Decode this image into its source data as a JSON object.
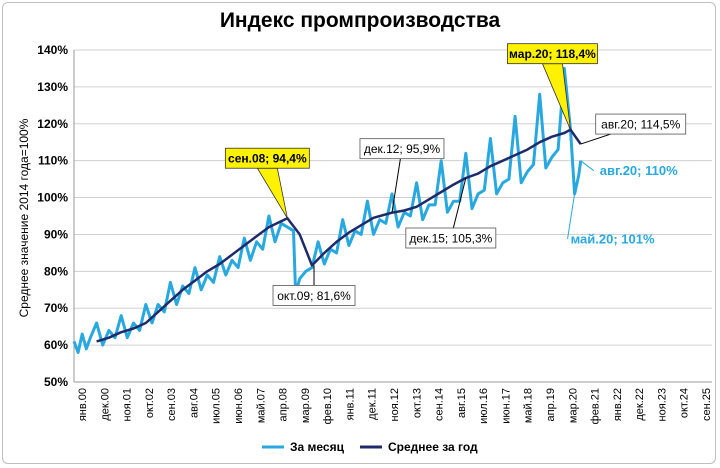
{
  "chart_data": {
    "type": "line",
    "title": "Индекс промпроизводства",
    "ylabel": "Среднее значение 2014 года=100%",
    "xlabel": "",
    "ylim": [
      50,
      140
    ],
    "y_ticks": [
      "50%",
      "60%",
      "70%",
      "80%",
      "90%",
      "100%",
      "110%",
      "120%",
      "130%",
      "140%"
    ],
    "x_range": [
      "2000-01",
      "2025-12"
    ],
    "x_tick_labels": [
      "янв.00",
      "дек.00",
      "ноя.01",
      "окт.02",
      "сен.03",
      "авг.04",
      "июл.05",
      "июн.06",
      "май.07",
      "апр.08",
      "мар.09",
      "фев.10",
      "янв.11",
      "дек.11",
      "ноя.12",
      "окт.13",
      "сен.14",
      "авг.15",
      "июл.16",
      "июн.17",
      "май.18",
      "апр.19",
      "мар.20",
      "фев.21",
      "янв.22",
      "дек.22",
      "ноя.23",
      "окт.24",
      "сен.25"
    ],
    "grid": true,
    "legend_position": "bottom",
    "series": [
      {
        "name": "За месяц",
        "color": "#29a8e0",
        "points": [
          [
            "2000-01",
            61
          ],
          [
            "2000-03",
            58
          ],
          [
            "2000-05",
            63
          ],
          [
            "2000-07",
            59
          ],
          [
            "2000-09",
            62
          ],
          [
            "2000-12",
            66
          ],
          [
            "2001-03",
            60
          ],
          [
            "2001-06",
            64
          ],
          [
            "2001-09",
            62
          ],
          [
            "2001-12",
            68
          ],
          [
            "2002-03",
            62
          ],
          [
            "2002-06",
            66
          ],
          [
            "2002-09",
            64
          ],
          [
            "2002-12",
            71
          ],
          [
            "2003-03",
            66
          ],
          [
            "2003-06",
            71
          ],
          [
            "2003-09",
            69
          ],
          [
            "2003-12",
            77
          ],
          [
            "2004-03",
            71
          ],
          [
            "2004-06",
            76
          ],
          [
            "2004-09",
            74
          ],
          [
            "2004-12",
            81
          ],
          [
            "2005-03",
            75
          ],
          [
            "2005-06",
            79
          ],
          [
            "2005-09",
            77
          ],
          [
            "2005-12",
            84
          ],
          [
            "2006-03",
            79
          ],
          [
            "2006-06",
            83
          ],
          [
            "2006-09",
            81
          ],
          [
            "2006-12",
            89
          ],
          [
            "2007-03",
            83
          ],
          [
            "2007-06",
            88
          ],
          [
            "2007-09",
            86
          ],
          [
            "2007-12",
            95
          ],
          [
            "2008-03",
            88
          ],
          [
            "2008-06",
            93
          ],
          [
            "2008-09",
            92
          ],
          [
            "2008-12",
            91
          ],
          [
            "2009-01",
            74
          ],
          [
            "2009-03",
            78
          ],
          [
            "2009-06",
            80
          ],
          [
            "2009-09",
            81
          ],
          [
            "2009-12",
            88
          ],
          [
            "2010-03",
            82
          ],
          [
            "2010-06",
            86
          ],
          [
            "2010-09",
            85
          ],
          [
            "2010-12",
            94
          ],
          [
            "2011-03",
            87
          ],
          [
            "2011-06",
            91
          ],
          [
            "2011-09",
            90
          ],
          [
            "2011-12",
            99
          ],
          [
            "2012-03",
            90
          ],
          [
            "2012-06",
            94
          ],
          [
            "2012-09",
            93
          ],
          [
            "2012-12",
            101
          ],
          [
            "2013-03",
            92
          ],
          [
            "2013-06",
            96
          ],
          [
            "2013-09",
            95
          ],
          [
            "2013-12",
            104
          ],
          [
            "2014-03",
            94
          ],
          [
            "2014-06",
            98
          ],
          [
            "2014-09",
            98
          ],
          [
            "2014-12",
            110
          ],
          [
            "2015-03",
            96
          ],
          [
            "2015-06",
            99
          ],
          [
            "2015-09",
            99
          ],
          [
            "2015-12",
            112
          ],
          [
            "2016-03",
            97
          ],
          [
            "2016-06",
            101
          ],
          [
            "2016-09",
            102
          ],
          [
            "2016-12",
            116
          ],
          [
            "2017-03",
            101
          ],
          [
            "2017-06",
            104
          ],
          [
            "2017-09",
            105
          ],
          [
            "2017-12",
            122
          ],
          [
            "2018-03",
            104
          ],
          [
            "2018-06",
            107
          ],
          [
            "2018-09",
            109
          ],
          [
            "2018-12",
            128
          ],
          [
            "2019-03",
            108
          ],
          [
            "2019-06",
            111
          ],
          [
            "2019-09",
            113
          ],
          [
            "2019-12",
            135
          ],
          [
            "2020-03",
            118.4
          ],
          [
            "2020-05",
            101
          ],
          [
            "2020-07",
            106
          ],
          [
            "2020-08",
            110
          ]
        ]
      },
      {
        "name": "Среднее за год",
        "color": "#1f2a6b",
        "points": [
          [
            "2000-12",
            61
          ],
          [
            "2001-06",
            62
          ],
          [
            "2001-12",
            63.5
          ],
          [
            "2002-06",
            64.5
          ],
          [
            "2002-12",
            66
          ],
          [
            "2003-06",
            69
          ],
          [
            "2003-12",
            72
          ],
          [
            "2004-06",
            75
          ],
          [
            "2004-12",
            77.5
          ],
          [
            "2005-06",
            80
          ],
          [
            "2005-12",
            82
          ],
          [
            "2006-06",
            84.5
          ],
          [
            "2006-12",
            87
          ],
          [
            "2007-06",
            89.5
          ],
          [
            "2007-12",
            92
          ],
          [
            "2008-09",
            94.4
          ],
          [
            "2009-03",
            90
          ],
          [
            "2009-09",
            81.6
          ],
          [
            "2010-03",
            85
          ],
          [
            "2010-09",
            88
          ],
          [
            "2011-03",
            90.5
          ],
          [
            "2011-09",
            92.5
          ],
          [
            "2012-03",
            94.5
          ],
          [
            "2012-12",
            95.9
          ],
          [
            "2013-06",
            96.5
          ],
          [
            "2013-12",
            97.5
          ],
          [
            "2014-06",
            99.5
          ],
          [
            "2014-12",
            101.5
          ],
          [
            "2015-06",
            103.5
          ],
          [
            "2015-12",
            105.3
          ],
          [
            "2016-06",
            106.5
          ],
          [
            "2016-12",
            108.5
          ],
          [
            "2017-06",
            110
          ],
          [
            "2017-12",
            111.5
          ],
          [
            "2018-06",
            113
          ],
          [
            "2018-12",
            115
          ],
          [
            "2019-06",
            116.5
          ],
          [
            "2019-12",
            117.5
          ],
          [
            "2020-03",
            118.4
          ],
          [
            "2020-08",
            114.5
          ]
        ]
      }
    ],
    "annotations": [
      {
        "text": "сен.08; 94,4%",
        "at": [
          "2008-09",
          94.4
        ],
        "style": "callout-yellow"
      },
      {
        "text": "окт.09; 81,6%",
        "at": [
          "2009-10",
          81.6
        ],
        "style": "box"
      },
      {
        "text": "дек.12; 95,9%",
        "at": [
          "2012-12",
          95.9
        ],
        "style": "box"
      },
      {
        "text": "дек.15; 105,3%",
        "at": [
          "2015-12",
          105.3
        ],
        "style": "box"
      },
      {
        "text": "мар.20; 118,4%",
        "at": [
          "2020-03",
          118.4
        ],
        "style": "callout-yellow"
      },
      {
        "text": "авг.20; 114,5%",
        "at": [
          "2020-08",
          114.5
        ],
        "style": "box"
      },
      {
        "text": "авг.20; 110%",
        "at": [
          "2020-08",
          110
        ],
        "style": "cyan"
      },
      {
        "text": "май.20; 101%",
        "at": [
          "2020-05",
          101
        ],
        "style": "cyan"
      }
    ]
  }
}
